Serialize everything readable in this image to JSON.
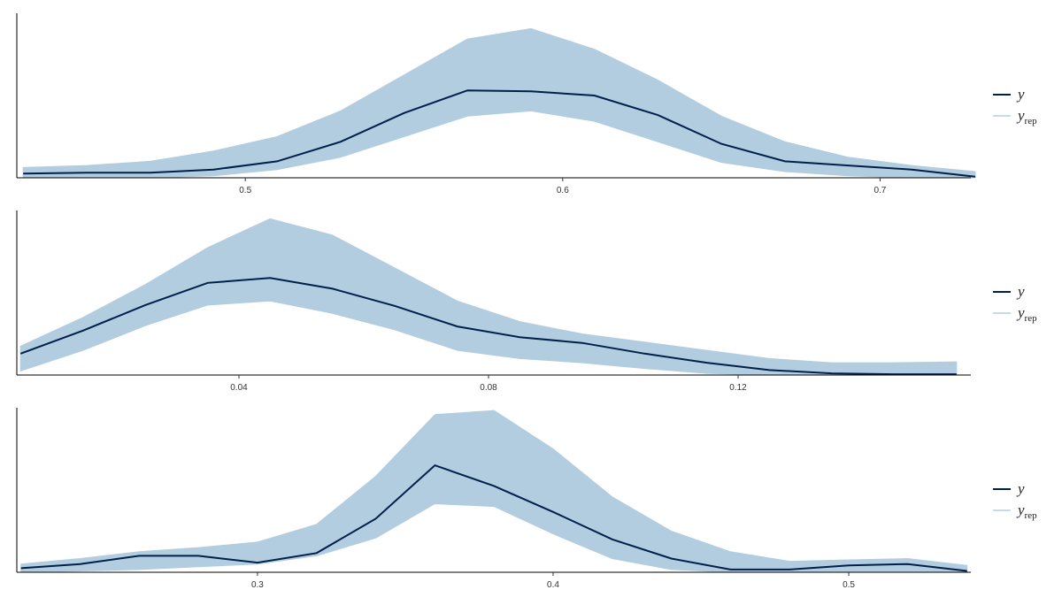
{
  "chart_data": [
    {
      "type": "line",
      "x": [
        0.43,
        0.45,
        0.47,
        0.49,
        0.51,
        0.53,
        0.55,
        0.57,
        0.59,
        0.61,
        0.63,
        0.65,
        0.67,
        0.69,
        0.71,
        0.73
      ],
      "xlim": [
        0.428,
        0.7286
      ],
      "xticks": [
        0.5,
        0.6,
        0.7
      ],
      "ylim": [
        0,
        16
      ],
      "series": [
        {
          "name": "y",
          "color": "#011f4b",
          "values": [
            0.4,
            0.5,
            0.5,
            0.8,
            1.6,
            3.5,
            6.3,
            8.5,
            8.4,
            8.0,
            6.1,
            3.3,
            1.6,
            1.2,
            0.8,
            0.1
          ]
        },
        {
          "name": "y",
          "subscript": "rep",
          "color": "#b3cde0",
          "upper": [
            1.0,
            1.2,
            1.6,
            2.6,
            4.0,
            6.5,
            10.0,
            13.5,
            14.5,
            12.5,
            9.5,
            6.0,
            3.5,
            2.0,
            1.2,
            0.6
          ],
          "lower": [
            0,
            0,
            0,
            0.2,
            0.8,
            2.0,
            4.0,
            6.0,
            6.5,
            5.5,
            3.5,
            1.5,
            0.6,
            0.2,
            0,
            0
          ]
        }
      ]
    },
    {
      "type": "line",
      "x": [
        0.005,
        0.015,
        0.025,
        0.035,
        0.045,
        0.055,
        0.065,
        0.075,
        0.085,
        0.095,
        0.105,
        0.115,
        0.125,
        0.135,
        0.145,
        0.155
      ],
      "xlim": [
        0.0044,
        0.1573
      ],
      "xticks": [
        0.04,
        0.08,
        0.12
      ],
      "ylim": [
        0,
        20
      ],
      "series": [
        {
          "name": "y",
          "color": "#011f4b",
          "values": [
            2.6,
            5.4,
            8.5,
            11.2,
            11.8,
            10.5,
            8.4,
            5.9,
            4.6,
            3.9,
            2.6,
            1.5,
            0.6,
            0.2,
            0.1,
            0.1
          ]
        },
        {
          "name": "y",
          "subscript": "rep",
          "color": "#b3cde0",
          "upper": [
            3.5,
            7,
            11,
            15.5,
            19,
            17,
            13,
            9,
            6.5,
            5,
            4,
            3,
            2,
            1.5,
            1.5,
            1.6
          ],
          "lower": [
            0.5,
            3,
            6,
            8.5,
            9,
            7.5,
            5.5,
            3,
            2,
            1.5,
            0.8,
            0.2,
            0,
            0,
            0,
            0
          ]
        }
      ]
    },
    {
      "type": "line",
      "x": [
        0.22,
        0.24,
        0.26,
        0.28,
        0.3,
        0.32,
        0.34,
        0.36,
        0.38,
        0.4,
        0.42,
        0.44,
        0.46,
        0.48,
        0.5,
        0.52,
        0.54
      ],
      "xlim": [
        0.2186,
        0.5413
      ],
      "xticks": [
        0.3,
        0.4,
        0.5
      ],
      "ylim": [
        0,
        12
      ],
      "series": [
        {
          "name": "y",
          "color": "#011f4b",
          "values": [
            0.3,
            0.6,
            1.2,
            1.2,
            0.7,
            1.4,
            3.9,
            7.8,
            6.3,
            4.4,
            2.4,
            1.0,
            0.2,
            0.2,
            0.5,
            0.6,
            0.1
          ]
        },
        {
          "name": "y",
          "subscript": "rep",
          "color": "#b3cde0",
          "upper": [
            0.6,
            1.0,
            1.5,
            1.8,
            2.2,
            3.5,
            7,
            11.5,
            11.8,
            9,
            5.5,
            3,
            1.5,
            0.8,
            0.9,
            1.0,
            0.5
          ],
          "lower": [
            0,
            0.1,
            0.2,
            0.4,
            0.6,
            1.2,
            2.5,
            5,
            4.8,
            2.8,
            1.0,
            0.2,
            0,
            0,
            0,
            0,
            0
          ]
        }
      ]
    }
  ]
}
